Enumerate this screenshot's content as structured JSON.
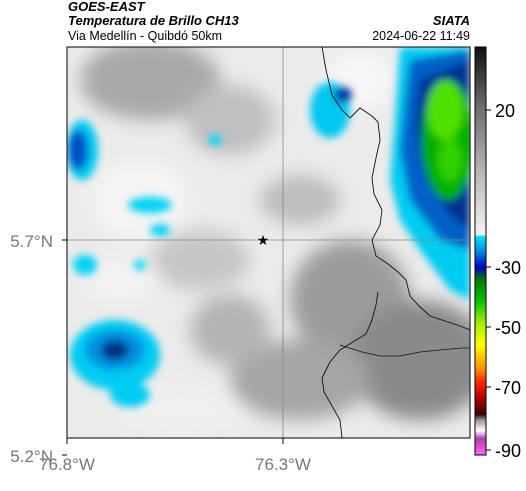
{
  "header": {
    "satellite": "GOES-EAST",
    "product": "Temperatura de Brillo CH13",
    "organization": "SIATA",
    "route": "Via Medellín - Quibdó 50km",
    "timestamp": "2024-06-22 11:49"
  },
  "map": {
    "lat_ticks": [
      {
        "value": 5.7,
        "label": "5.7°N"
      },
      {
        "value": 5.2,
        "label": "5.2°N"
      }
    ],
    "lon_ticks": [
      {
        "value": -76.8,
        "label": "76.8°W"
      },
      {
        "value": -76.3,
        "label": "76.3°W"
      }
    ],
    "marker": {
      "symbol": "star-icon"
    }
  },
  "colorbar": {
    "ticks": [
      {
        "value": 20,
        "label": "20"
      },
      {
        "value": -30,
        "label": "-30"
      },
      {
        "value": -50,
        "label": "-50"
      },
      {
        "value": -70,
        "label": "-70"
      },
      {
        "value": -90,
        "label": "-90"
      }
    ],
    "colors": [
      "#ff66ff",
      "#b03cb0",
      "#ffffff",
      "#9a9a9a",
      "#6e0000",
      "#ff0000",
      "#ff8c00",
      "#ffff00",
      "#7cf000",
      "#00c000",
      "#00a000",
      "#0000c0",
      "#00d0f0",
      "#dcdcdc",
      "#1e1e1e"
    ]
  }
}
